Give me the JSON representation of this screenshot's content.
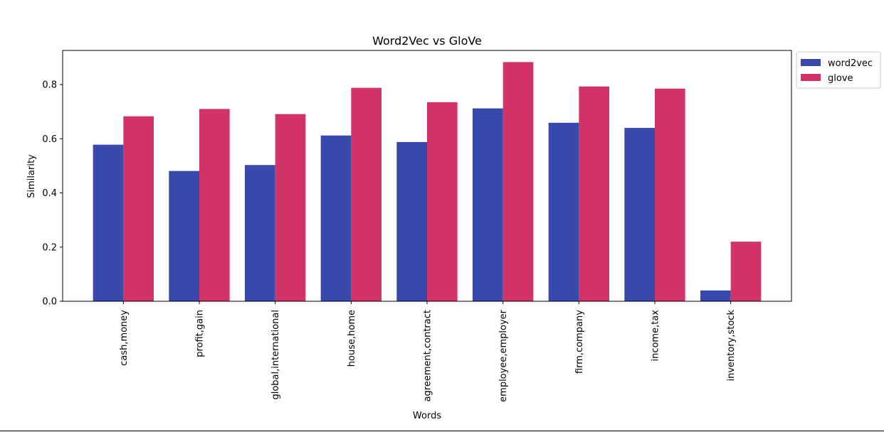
{
  "chart_data": {
    "type": "bar",
    "title": "Word2Vec vs GloVe",
    "xlabel": "Words",
    "ylabel": "Similarity",
    "categories": [
      "cash,money",
      "profit,gain",
      "global,international",
      "house,home",
      "agreement,contract",
      "employee,employer",
      "firm,company",
      "income,tax",
      "inventory,stock"
    ],
    "series": [
      {
        "name": "word2vec",
        "color": "#3949ab",
        "values": [
          0.578,
          0.481,
          0.503,
          0.612,
          0.588,
          0.712,
          0.659,
          0.64,
          0.04
        ]
      },
      {
        "name": "glove",
        "color": "#d13367",
        "values": [
          0.683,
          0.71,
          0.691,
          0.788,
          0.735,
          0.883,
          0.793,
          0.785,
          0.22
        ]
      }
    ],
    "ylim": [
      0,
      0.926
    ],
    "yticks": [
      0.0,
      0.2,
      0.4,
      0.6,
      0.8
    ],
    "ytick_labels": [
      "0.0",
      "0.2",
      "0.4",
      "0.6",
      "0.8"
    ],
    "grid": false,
    "legend_position": "outside-top-right"
  }
}
